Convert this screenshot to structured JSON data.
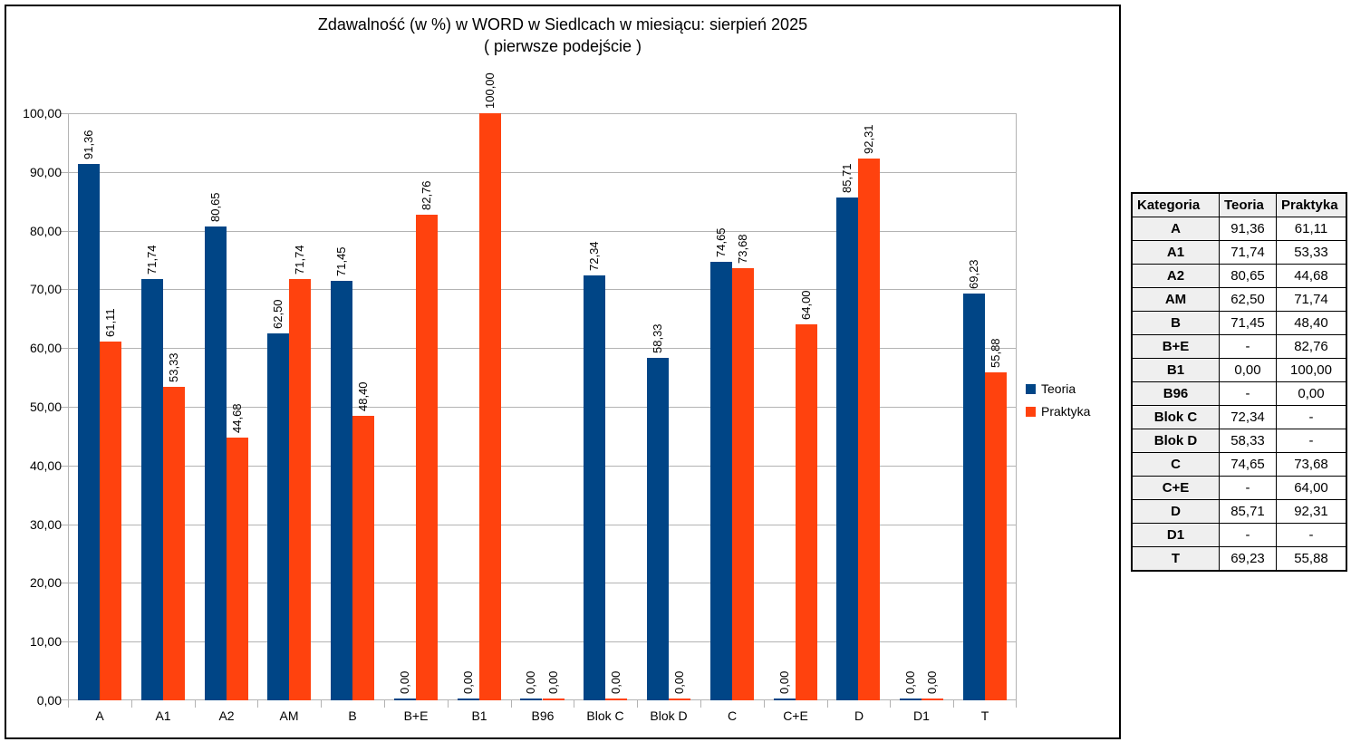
{
  "colors": {
    "teoria": "#004586",
    "praktyka": "#FF420E",
    "grid": "#b3b3b3",
    "table_shade": "#efefef"
  },
  "chart_data": {
    "type": "bar",
    "title": "Zdawalność (w %) w WORD w Siedlcach w miesiącu: sierpień 2025",
    "subtitle": "( pierwsze podejście )",
    "categories": [
      "A",
      "A1",
      "A2",
      "AM",
      "B",
      "B+E",
      "B1",
      "B96",
      "Blok C",
      "Blok D",
      "C",
      "C+E",
      "D",
      "D1",
      "T"
    ],
    "series": [
      {
        "name": "Teoria",
        "color": "#004586",
        "values": [
          91.36,
          71.74,
          80.65,
          62.5,
          71.45,
          0.0,
          0.0,
          0.0,
          72.34,
          58.33,
          74.65,
          0.0,
          85.71,
          0.0,
          69.23
        ],
        "labels": [
          "91,36",
          "71,74",
          "80,65",
          "62,50",
          "71,45",
          "0,00",
          "0,00",
          "0,00",
          "72,34",
          "58,33",
          "74,65",
          "0,00",
          "85,71",
          "0,00",
          "69,23"
        ]
      },
      {
        "name": "Praktyka",
        "color": "#FF420E",
        "values": [
          61.11,
          53.33,
          44.68,
          71.74,
          48.4,
          82.76,
          100.0,
          0.0,
          0.0,
          0.0,
          73.68,
          64.0,
          92.31,
          0.0,
          55.88
        ],
        "labels": [
          "61,11",
          "53,33",
          "44,68",
          "71,74",
          "48,40",
          "82,76",
          "100,00",
          "0,00",
          "0,00",
          "0,00",
          "73,68",
          "64,00",
          "92,31",
          "0,00",
          "55,88"
        ]
      }
    ],
    "ylim": [
      0,
      100
    ],
    "ytick_step": 10,
    "ytick_labels": [
      "0,00",
      "10,00",
      "20,00",
      "30,00",
      "40,00",
      "50,00",
      "60,00",
      "70,00",
      "80,00",
      "90,00",
      "100,00"
    ],
    "grid": true,
    "legend_position": "right"
  },
  "table": {
    "headers": [
      "Kategoria",
      "Teoria",
      "Praktyka"
    ],
    "rows": [
      [
        "A",
        "91,36",
        "61,11"
      ],
      [
        "A1",
        "71,74",
        "53,33"
      ],
      [
        "A2",
        "80,65",
        "44,68"
      ],
      [
        "AM",
        "62,50",
        "71,74"
      ],
      [
        "B",
        "71,45",
        "48,40"
      ],
      [
        "B+E",
        "-",
        "82,76"
      ],
      [
        "B1",
        "0,00",
        "100,00"
      ],
      [
        "B96",
        "-",
        "0,00"
      ],
      [
        "Blok C",
        "72,34",
        "-"
      ],
      [
        "Blok D",
        "58,33",
        "-"
      ],
      [
        "C",
        "74,65",
        "73,68"
      ],
      [
        "C+E",
        "-",
        "64,00"
      ],
      [
        "D",
        "85,71",
        "92,31"
      ],
      [
        "D1",
        "-",
        "-"
      ],
      [
        "T",
        "69,23",
        "55,88"
      ]
    ]
  }
}
